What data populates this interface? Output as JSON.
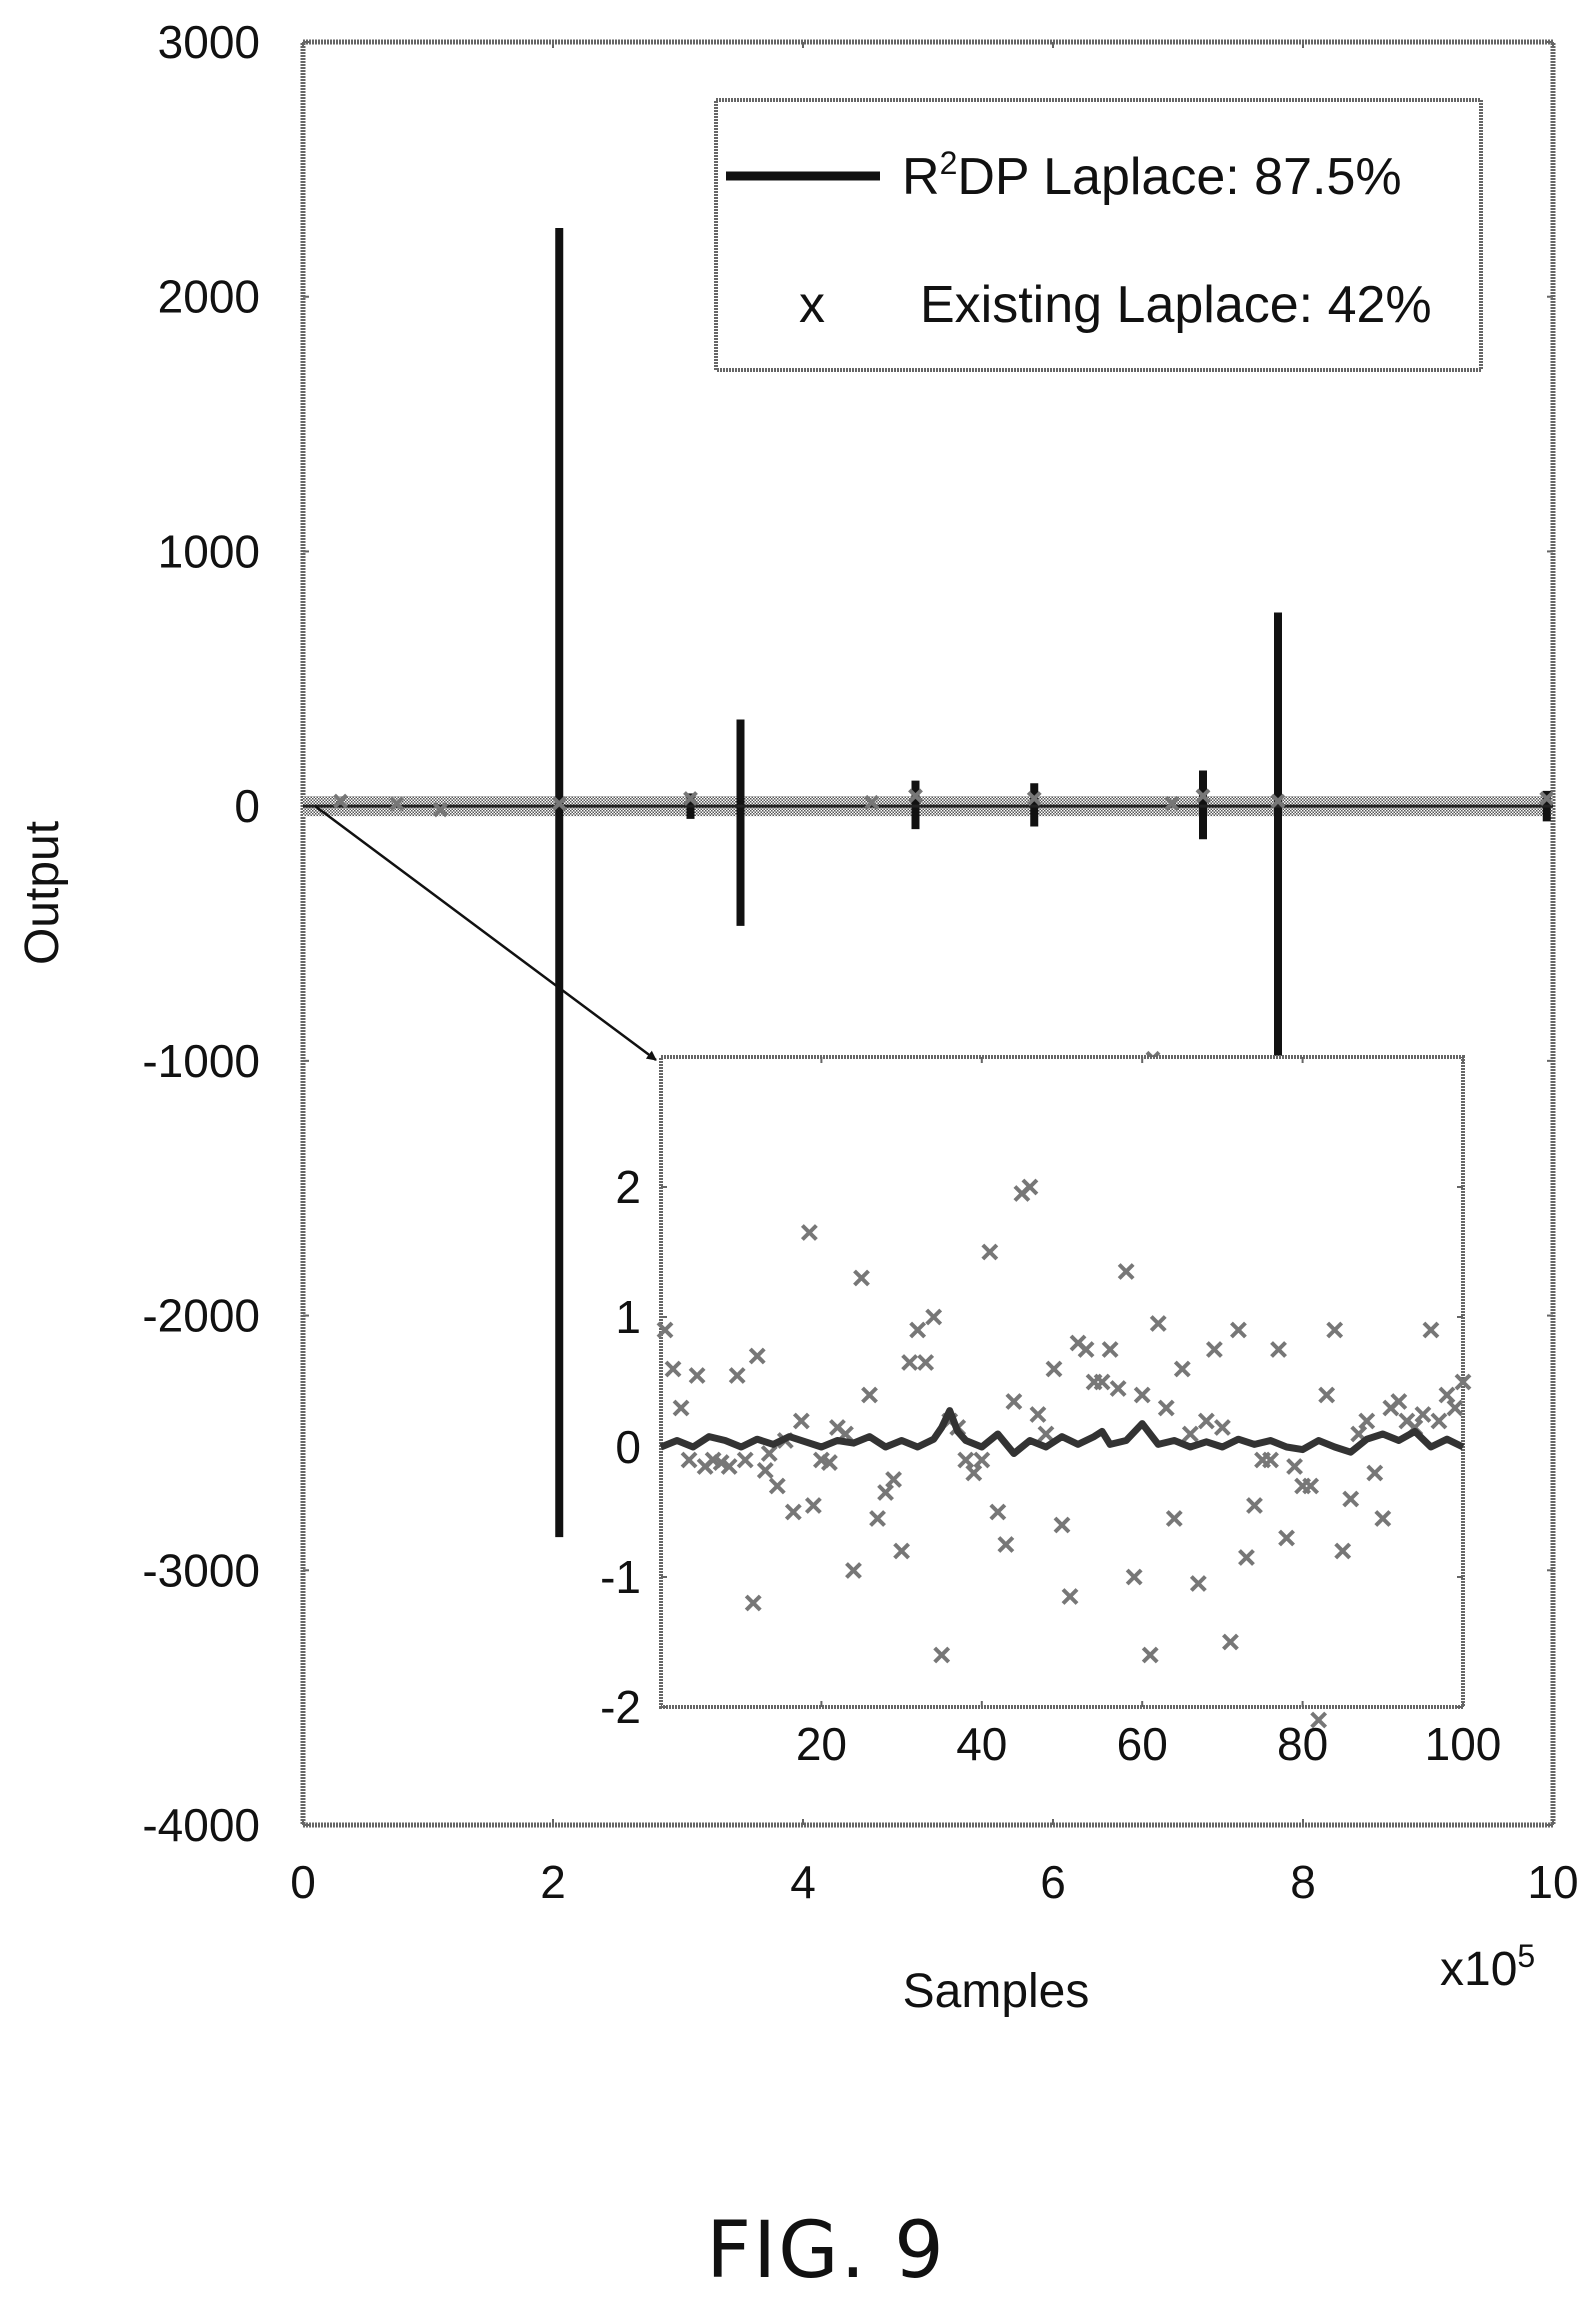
{
  "caption": "FIG. 9",
  "chart_data": [
    {
      "type": "scatter",
      "xlabel": "Samples",
      "ylabel": "Output",
      "x_multiplier": "x10",
      "x_multiplier_exp": "5",
      "xlim": [
        0,
        10
      ],
      "ylim": [
        -4000,
        3000
      ],
      "xticks": [
        "0",
        "2",
        "4",
        "6",
        "8",
        "10"
      ],
      "yticks": [
        "3000",
        "2000",
        "1000",
        "0",
        "-1000",
        "-2000",
        "-3000",
        "-4000"
      ],
      "legend": {
        "position": "top-right",
        "entries": [
          {
            "marker": "line",
            "label": "R",
            "superscript": "2",
            "label_rest": "DP Laplace: 87.5%"
          },
          {
            "marker": "x",
            "glyph": "x",
            "label": "Existing Laplace: 42%"
          }
        ]
      },
      "series": [
        {
          "name": "R2DP Laplace: 87.5%",
          "style": "line",
          "baseline": 0,
          "spikes": [
            {
              "x": 2.05,
              "high": 2270,
              "low": -2870
            },
            {
              "x": 3.5,
              "high": 340,
              "low": -470
            },
            {
              "x": 4.9,
              "high": 100,
              "low": -90
            },
            {
              "x": 5.85,
              "high": 90,
              "low": -80
            },
            {
              "x": 7.2,
              "high": 140,
              "low": -130
            },
            {
              "x": 7.8,
              "high": 760,
              "low": -980
            },
            {
              "x": 3.1,
              "high": 50,
              "low": -50
            },
            {
              "x": 9.95,
              "high": 60,
              "low": -60
            }
          ]
        },
        {
          "name": "Existing Laplace: 42%",
          "style": "x",
          "points": [
            [
              0.3,
              20
            ],
            [
              0.75,
              10
            ],
            [
              1.1,
              -15
            ],
            [
              2.05,
              10
            ],
            [
              3.1,
              30
            ],
            [
              4.55,
              15
            ],
            [
              4.9,
              40
            ],
            [
              5.85,
              30
            ],
            [
              6.8,
              -990
            ],
            [
              6.95,
              10
            ],
            [
              7.2,
              40
            ],
            [
              7.8,
              20
            ],
            [
              9.95,
              30
            ]
          ]
        }
      ]
    },
    {
      "type": "scatter",
      "inset": true,
      "xlim": [
        0,
        100
      ],
      "ylim": [
        -2,
        3
      ],
      "xticks": [
        "20",
        "40",
        "60",
        "80",
        "100"
      ],
      "yticks": [
        "2",
        "1",
        "0",
        "-1",
        "-2"
      ],
      "series": [
        {
          "name": "R2DP Laplace: 87.5%",
          "style": "line",
          "x": [
            0,
            2,
            4,
            6,
            8,
            10,
            12,
            14,
            16,
            18,
            20,
            22,
            24,
            26,
            28,
            30,
            32,
            34,
            35,
            36,
            37,
            38,
            40,
            42,
            44,
            46,
            48,
            50,
            52,
            54,
            55,
            56,
            58,
            60,
            62,
            64,
            66,
            68,
            70,
            72,
            74,
            76,
            78,
            80,
            82,
            84,
            86,
            88,
            90,
            92,
            94,
            96,
            98,
            100
          ],
          "y": [
            0.0,
            0.05,
            0.0,
            0.08,
            0.05,
            0.0,
            0.06,
            0.02,
            0.08,
            0.04,
            0.0,
            0.05,
            0.03,
            0.08,
            0.0,
            0.05,
            0.0,
            0.06,
            0.15,
            0.28,
            0.12,
            0.05,
            0.0,
            0.1,
            -0.05,
            0.05,
            0.0,
            0.08,
            0.02,
            0.08,
            0.12,
            0.02,
            0.05,
            0.18,
            0.02,
            0.05,
            0.0,
            0.04,
            0.0,
            0.06,
            0.02,
            0.05,
            0.0,
            -0.02,
            0.05,
            0.0,
            -0.04,
            0.06,
            0.1,
            0.05,
            0.12,
            0.0,
            0.06,
            0.0
          ]
        },
        {
          "name": "Existing Laplace: 42%",
          "style": "x",
          "x": [
            0.5,
            1.5,
            2.5,
            3.5,
            4.5,
            5.5,
            6.5,
            7.5,
            8.5,
            9.5,
            10.5,
            11.5,
            12,
            13,
            13.5,
            14.5,
            15.5,
            16.5,
            17.5,
            18.5,
            19,
            20,
            21,
            22,
            23,
            24,
            25,
            26,
            27,
            28,
            29,
            30,
            31,
            32,
            33,
            34,
            35,
            36,
            37,
            38,
            39,
            40,
            41,
            42,
            43,
            44,
            45,
            46,
            47,
            48,
            49,
            50,
            51,
            52,
            53,
            54,
            55,
            56,
            57,
            58,
            59,
            60,
            61,
            62,
            63,
            64,
            65,
            66,
            67,
            68,
            69,
            70,
            71,
            72,
            73,
            74,
            75,
            76,
            77,
            78,
            79,
            80,
            81,
            82,
            83,
            84,
            85,
            86,
            87,
            88,
            89,
            90,
            91,
            92,
            93,
            94,
            95,
            96,
            97,
            98,
            99,
            100
          ],
          "y": [
            0.9,
            0.6,
            0.3,
            -0.1,
            0.55,
            -0.15,
            -0.1,
            -0.12,
            -0.15,
            0.55,
            -0.1,
            -1.2,
            0.7,
            -0.18,
            -0.05,
            -0.3,
            0.05,
            -0.5,
            0.2,
            1.65,
            -0.45,
            -0.1,
            -0.12,
            0.15,
            0.1,
            -0.95,
            1.3,
            0.4,
            -0.55,
            -0.35,
            -0.25,
            -0.8,
            0.65,
            0.9,
            0.65,
            1.0,
            -1.6,
            0.2,
            0.15,
            -0.1,
            -0.2,
            -0.1,
            1.5,
            -0.5,
            -0.75,
            0.35,
            1.95,
            2.0,
            0.25,
            0.1,
            0.6,
            -0.6,
            -1.15,
            0.8,
            0.75,
            0.5,
            0.5,
            0.75,
            0.45,
            1.35,
            -1.0,
            0.4,
            -1.6,
            0.95,
            0.3,
            -0.55,
            0.6,
            0.1,
            -1.05,
            0.2,
            0.75,
            0.15,
            -1.5,
            0.9,
            -0.85,
            -0.45,
            -0.1,
            -0.1,
            0.75,
            -0.7,
            -0.15,
            -0.3,
            -0.3,
            -2.1,
            0.4,
            0.9,
            -0.8,
            -0.4,
            0.1,
            0.2,
            -0.2,
            -0.55,
            0.3,
            0.35,
            0.2,
            0.15,
            0.25,
            0.9,
            0.2,
            0.4,
            0.3,
            0.5
          ]
        }
      ]
    }
  ]
}
